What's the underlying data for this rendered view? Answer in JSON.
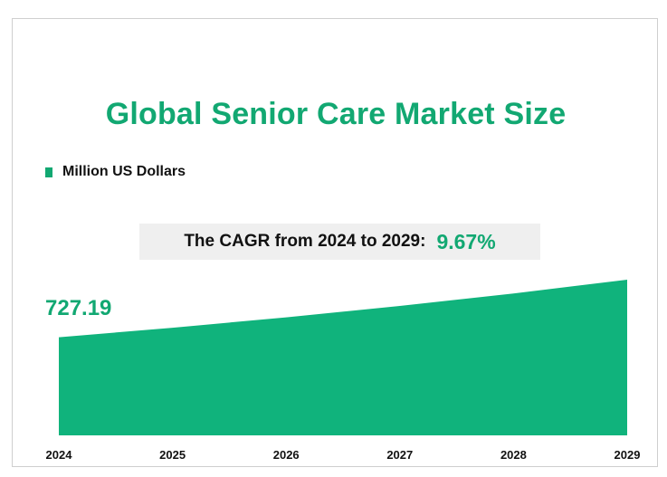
{
  "colors": {
    "accent": "#12a872",
    "area": "#10b37c",
    "cagr_box": "#efefef"
  },
  "legend": {
    "label": "Million US Dollars"
  },
  "cagr": {
    "label": "The CAGR from 2024 to 2029:",
    "value": "9.67%"
  },
  "first_value_label": "727.19",
  "chart_data": {
    "type": "area",
    "title": "Global Senior Care Market Size",
    "series": [
      {
        "name": "Million US Dollars",
        "values": [
          727.19,
          797.5,
          874.6,
          959.2,
          1052.0,
          1153.7
        ]
      }
    ],
    "x": [
      "2024",
      "2025",
      "2026",
      "2027",
      "2028",
      "2029"
    ],
    "ylim": [
      0,
      1153.7
    ],
    "grid": false,
    "legend_position": "top-left"
  }
}
